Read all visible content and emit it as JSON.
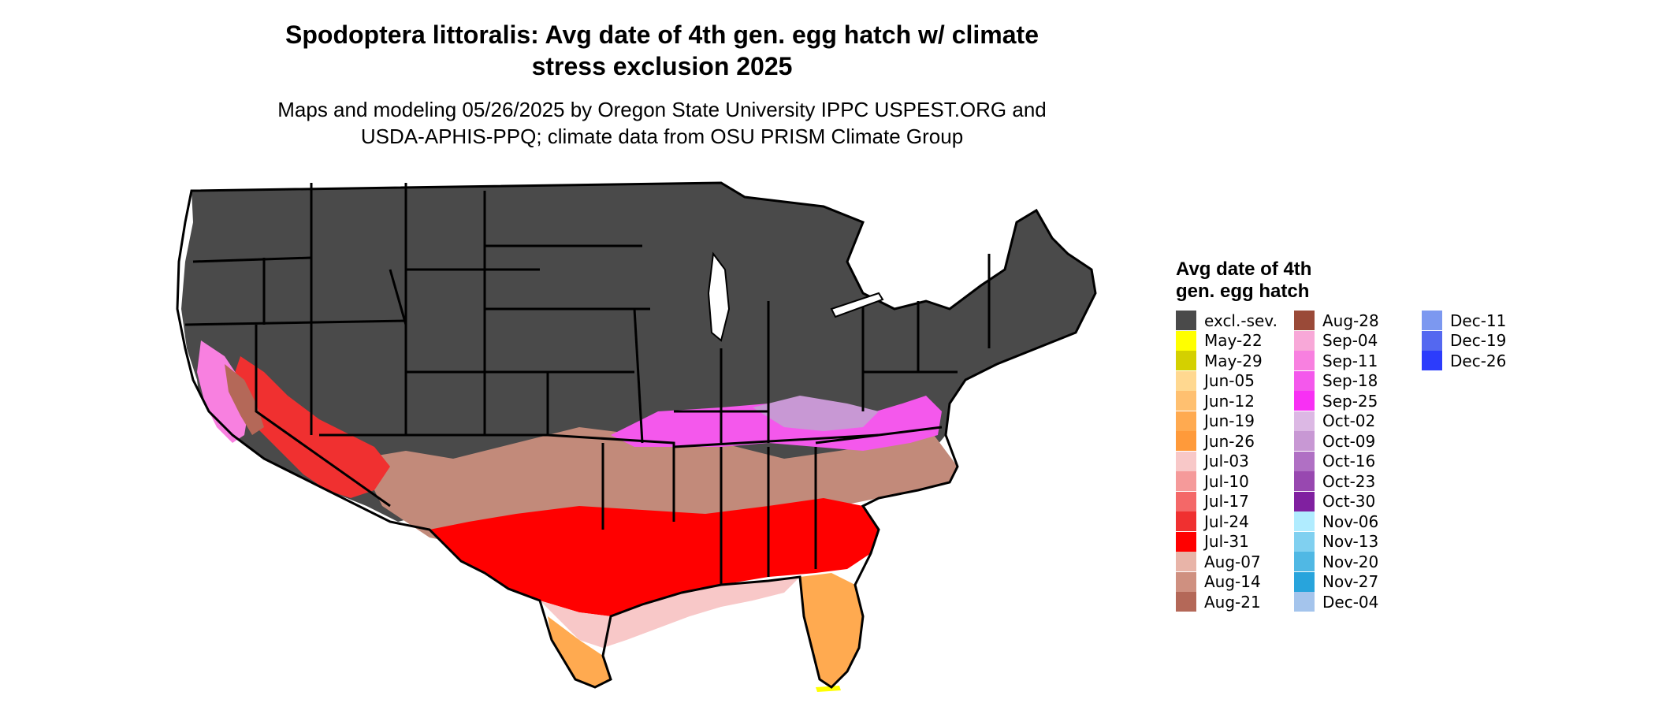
{
  "title_line1": "Spodoptera littoralis: Avg date of 4th gen. egg hatch w/ climate",
  "title_line2": "stress exclusion 2025",
  "subtitle_line1": "Maps and modeling 05/26/2025 by Oregon State University IPPC USPEST.ORG and",
  "subtitle_line2": "USDA-APHIS-PPQ; climate data from OSU PRISM Climate Group",
  "legend": {
    "title_line1": "Avg date of 4th",
    "title_line2": "gen. egg hatch",
    "items": [
      {
        "label": "excl.-sev.",
        "color": "#4a4a4a"
      },
      {
        "label": "May-22",
        "color": "#ffff00"
      },
      {
        "label": "May-29",
        "color": "#d4d000"
      },
      {
        "label": "Jun-05",
        "color": "#ffd890"
      },
      {
        "label": "Jun-12",
        "color": "#ffc070"
      },
      {
        "label": "Jun-19",
        "color": "#ffaa50"
      },
      {
        "label": "Jun-26",
        "color": "#ff9a3a"
      },
      {
        "label": "Jul-03",
        "color": "#f8c8c8"
      },
      {
        "label": "Jul-10",
        "color": "#f59a9a"
      },
      {
        "label": "Jul-17",
        "color": "#f46868"
      },
      {
        "label": "Jul-24",
        "color": "#f03030"
      },
      {
        "label": "Jul-31",
        "color": "#ff0000"
      },
      {
        "label": "Aug-07",
        "color": "#e8b4a8"
      },
      {
        "label": "Aug-14",
        "color": "#cf9080"
      },
      {
        "label": "Aug-21",
        "color": "#b46858"
      },
      {
        "label": "Aug-28",
        "color": "#9a4a38"
      },
      {
        "label": "Sep-04",
        "color": "#f8a8d8"
      },
      {
        "label": "Sep-11",
        "color": "#f880e0"
      },
      {
        "label": "Sep-18",
        "color": "#f458ec"
      },
      {
        "label": "Sep-25",
        "color": "#f830f4"
      },
      {
        "label": "Oct-02",
        "color": "#dcb8e4"
      },
      {
        "label": "Oct-09",
        "color": "#c898d4"
      },
      {
        "label": "Oct-16",
        "color": "#b070c4"
      },
      {
        "label": "Oct-23",
        "color": "#9848b0"
      },
      {
        "label": "Oct-30",
        "color": "#8020a0"
      },
      {
        "label": "Nov-06",
        "color": "#b0ecff"
      },
      {
        "label": "Nov-13",
        "color": "#80d0f0"
      },
      {
        "label": "Nov-20",
        "color": "#50b8e4"
      },
      {
        "label": "Nov-27",
        "color": "#28a4dc"
      },
      {
        "label": "Dec-04",
        "color": "#a4c4ec"
      },
      {
        "label": "Dec-11",
        "color": "#7c98f0"
      },
      {
        "label": "Dec-19",
        "color": "#5468f0"
      },
      {
        "label": "Dec-26",
        "color": "#2c3cfc"
      }
    ]
  }
}
